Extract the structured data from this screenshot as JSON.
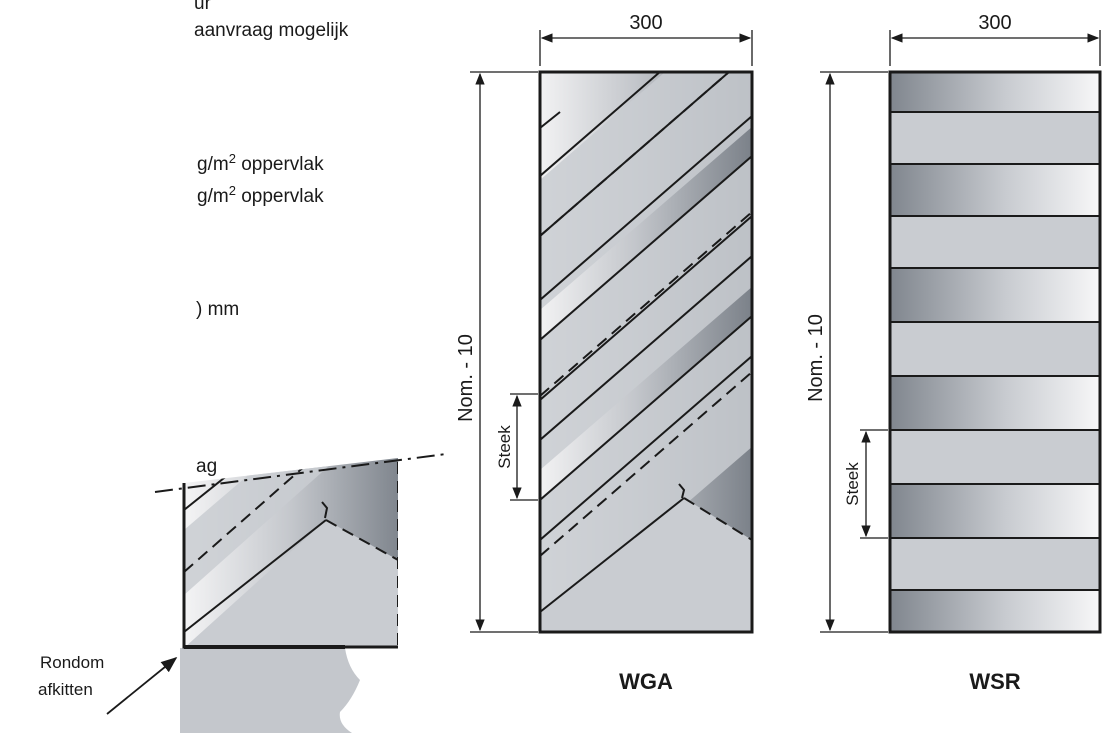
{
  "left_text": {
    "line1": "ur",
    "line2": "aanvraag mogelijk",
    "line3_unit": "g/m",
    "line3_exp": "2",
    "line3_rest": " oppervlak",
    "line4_unit": "g/m",
    "line4_exp": "2",
    "line4_rest": " oppervlak",
    "line5": ") mm",
    "line6": "ag"
  },
  "wga": {
    "width_label": "300",
    "height_label": "Nom. - 10",
    "pitch_label": "Steek",
    "name": "WGA"
  },
  "wsr": {
    "width_label": "300",
    "height_label": "Nom. - 10",
    "pitch_label": "Steek",
    "name": "WSR"
  },
  "detail": {
    "label_line1": "Rondom",
    "label_line2": "afkitten"
  },
  "colors": {
    "fill_light": "#c9ccd1",
    "fill_dark": "#7f858d",
    "outline": "#1a1a1a"
  }
}
